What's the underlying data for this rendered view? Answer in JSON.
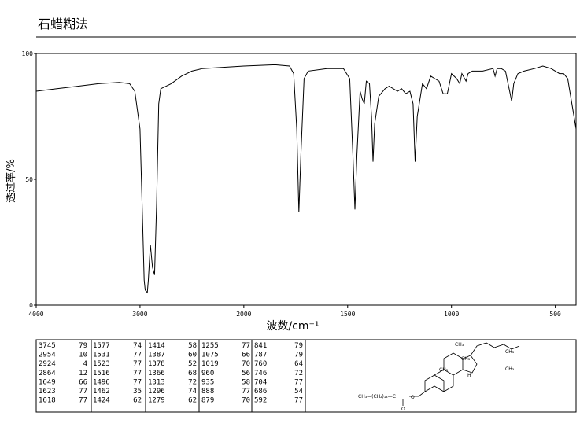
{
  "chart_data": {
    "type": "line",
    "title": "石蜡糊法",
    "xlabel": "波数/cm⁻¹",
    "ylabel": "透过率/%",
    "x_scale_change": 2000,
    "xlim": [
      4000,
      400
    ],
    "xticks": [
      4000,
      3000,
      2000,
      1500,
      1000,
      500
    ],
    "ylim": [
      0,
      100
    ],
    "yticks": [
      0,
      50,
      100
    ],
    "x": [
      4000,
      3800,
      3600,
      3400,
      3200,
      3100,
      3050,
      3000,
      2980,
      2960,
      2950,
      2930,
      2920,
      2900,
      2880,
      2860,
      2840,
      2820,
      2800,
      2700,
      2600,
      2500,
      2400,
      2200,
      2000,
      1850,
      1780,
      1760,
      1745,
      1735,
      1725,
      1710,
      1690,
      1600,
      1520,
      1490,
      1475,
      1465,
      1455,
      1440,
      1430,
      1420,
      1410,
      1395,
      1385,
      1378,
      1370,
      1350,
      1320,
      1300,
      1260,
      1240,
      1220,
      1200,
      1185,
      1175,
      1165,
      1140,
      1120,
      1100,
      1080,
      1060,
      1040,
      1020,
      1010,
      1000,
      975,
      960,
      950,
      930,
      920,
      900,
      850,
      800,
      790,
      780,
      760,
      740,
      720,
      710,
      700,
      680,
      650,
      600,
      560,
      520,
      480,
      460,
      440,
      420,
      400
    ],
    "series": [
      {
        "name": "spectrum",
        "color": "#000000",
        "values": [
          85,
          86,
          87,
          88,
          88.5,
          88,
          85,
          70,
          40,
          10,
          6,
          5,
          10,
          24,
          15,
          12,
          40,
          80,
          86,
          88,
          91,
          93,
          94,
          94.5,
          95,
          95.5,
          95,
          92,
          70,
          37,
          60,
          90,
          93,
          94,
          94,
          90,
          60,
          38,
          60,
          85,
          82,
          80,
          89,
          88,
          75,
          57,
          72,
          83,
          86,
          87,
          85,
          86,
          84,
          85,
          80,
          57,
          75,
          88,
          86,
          91,
          90,
          89,
          84,
          84,
          88,
          92,
          90,
          88,
          92,
          89,
          92,
          93,
          93,
          94,
          91,
          94,
          94,
          93,
          85,
          81,
          88,
          92,
          93,
          94,
          95,
          94,
          92,
          92,
          90,
          80,
          70
        ]
      }
    ]
  },
  "peak_table": [
    [
      [
        "3745",
        "79"
      ],
      [
        "2954",
        "10"
      ],
      [
        "2924",
        "4"
      ],
      [
        "2864",
        "12"
      ],
      [
        "1649",
        "66"
      ],
      [
        "1623",
        "77"
      ],
      [
        "1618",
        "77"
      ]
    ],
    [
      [
        "1577",
        "74"
      ],
      [
        "1531",
        "77"
      ],
      [
        "1523",
        "77"
      ],
      [
        "1516",
        "77"
      ],
      [
        "1496",
        "77"
      ],
      [
        "1462",
        "35"
      ],
      [
        "1424",
        "62"
      ]
    ],
    [
      [
        "1414",
        "58"
      ],
      [
        "1387",
        "60"
      ],
      [
        "1378",
        "52"
      ],
      [
        "1366",
        "68"
      ],
      [
        "1313",
        "72"
      ],
      [
        "1296",
        "74"
      ],
      [
        "1279",
        "62"
      ]
    ],
    [
      [
        "1255",
        "77"
      ],
      [
        "1075",
        "66"
      ],
      [
        "1019",
        "70"
      ],
      [
        "960",
        "56"
      ],
      [
        "935",
        "58"
      ],
      [
        "888",
        "77"
      ],
      [
        "879",
        "70"
      ]
    ],
    [
      [
        "841",
        "79"
      ],
      [
        "787",
        "79"
      ],
      [
        "760",
        "64"
      ],
      [
        "746",
        "72"
      ],
      [
        "704",
        "77"
      ],
      [
        "686",
        "54"
      ],
      [
        "592",
        "77"
      ]
    ]
  ],
  "structure": {
    "labels": [
      "CH₃",
      "CH₃",
      "CH₃",
      "CH₃",
      "CH₃",
      "H",
      "CH₃—(CH₂)₁₄—C",
      "O",
      "O"
    ]
  }
}
